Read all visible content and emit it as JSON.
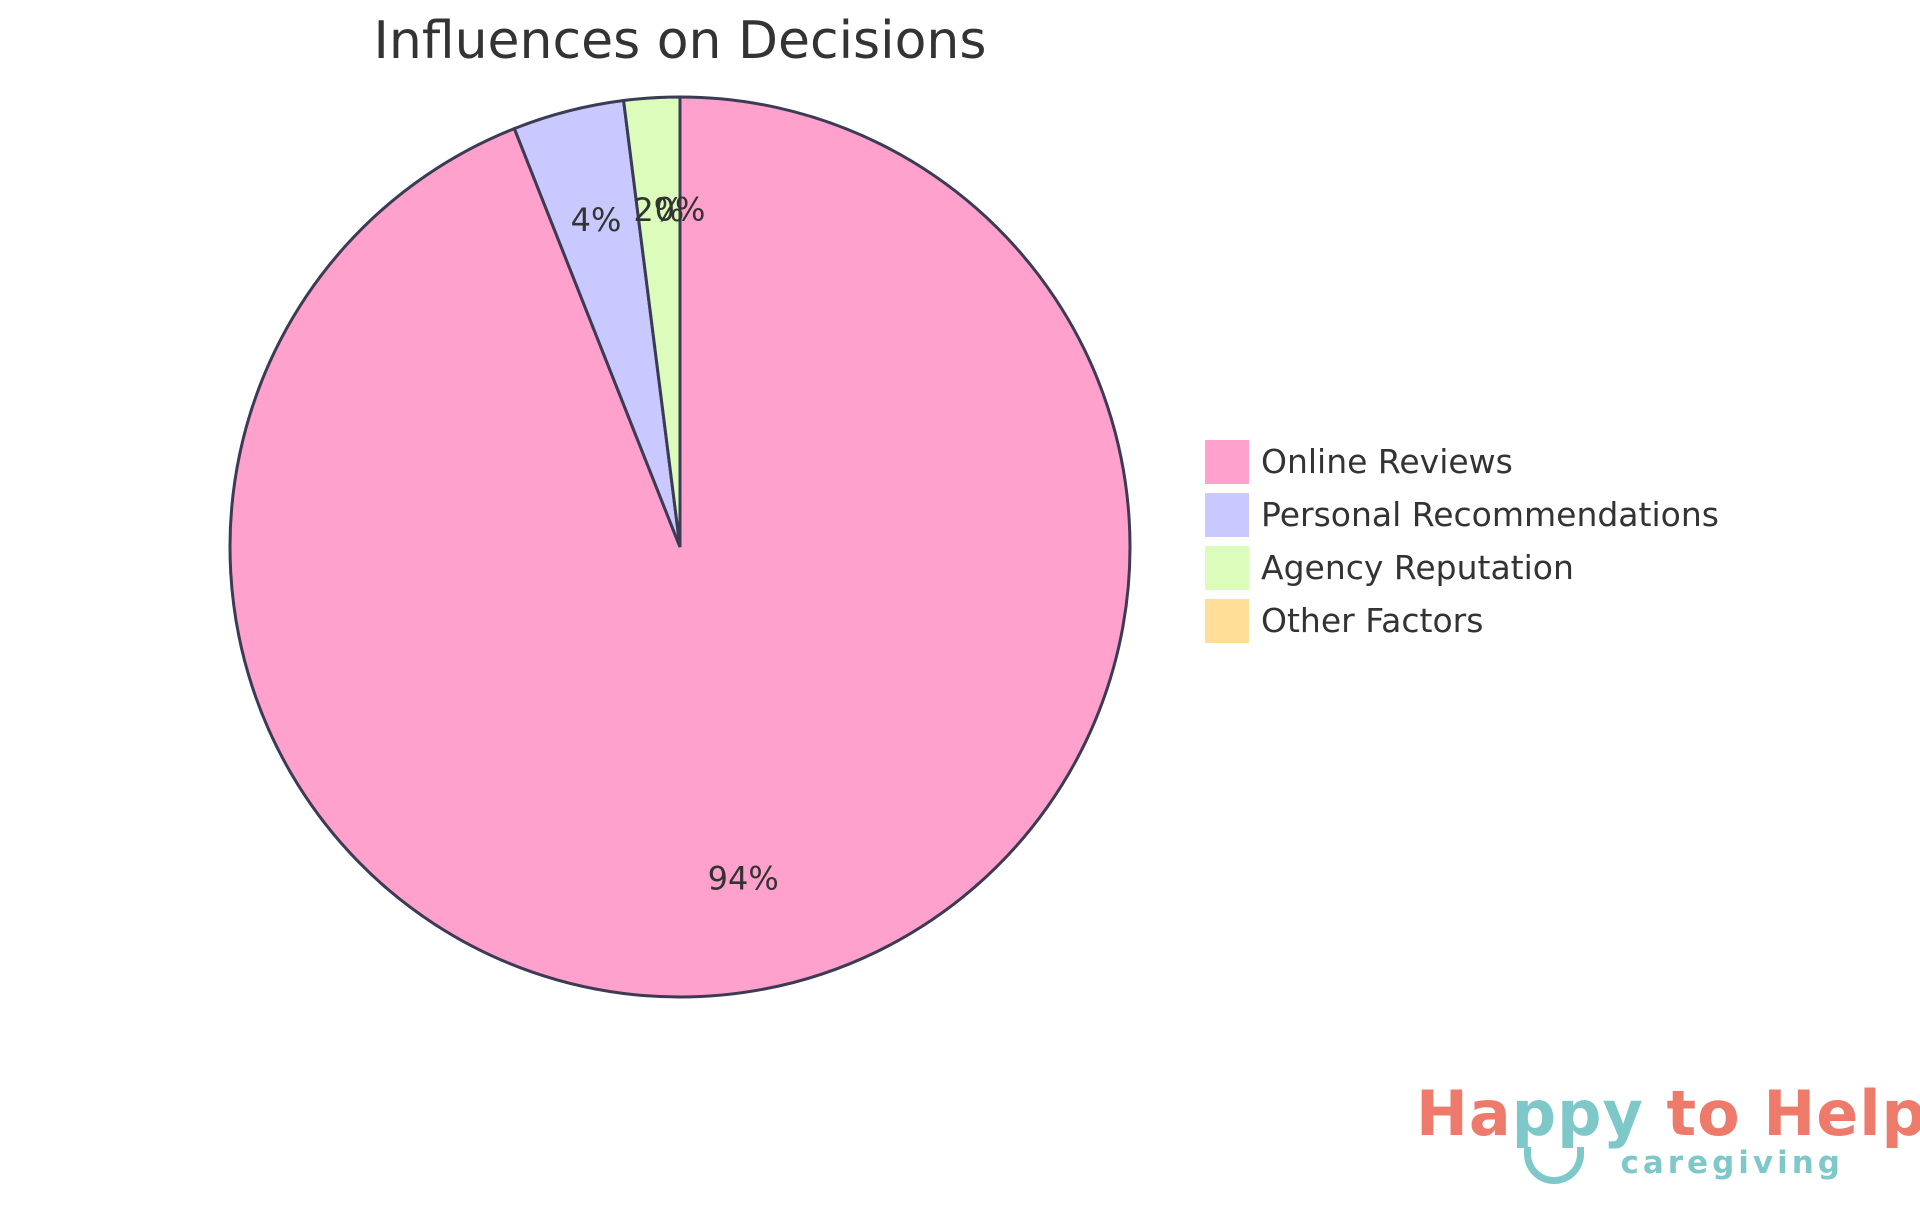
{
  "chart_data": {
    "type": "pie",
    "title": "Influences on Decisions",
    "categories": [
      "Online Reviews",
      "Personal Recommendations",
      "Agency Reputation",
      "Other Factors"
    ],
    "values": [
      94,
      4,
      2,
      0
    ],
    "labels": [
      "94%",
      "4%",
      "2%",
      "0%"
    ],
    "colors": [
      "#ffa1cc",
      "#c9c9ff",
      "#dcfcbc",
      "#ffdf98"
    ],
    "stroke_color": "#3b3b55",
    "legend_position": "right"
  },
  "logo": {
    "main_part1": "Ha",
    "main_part2": "ppy",
    "main_part3": " to Help",
    "sub": "caregiving"
  }
}
